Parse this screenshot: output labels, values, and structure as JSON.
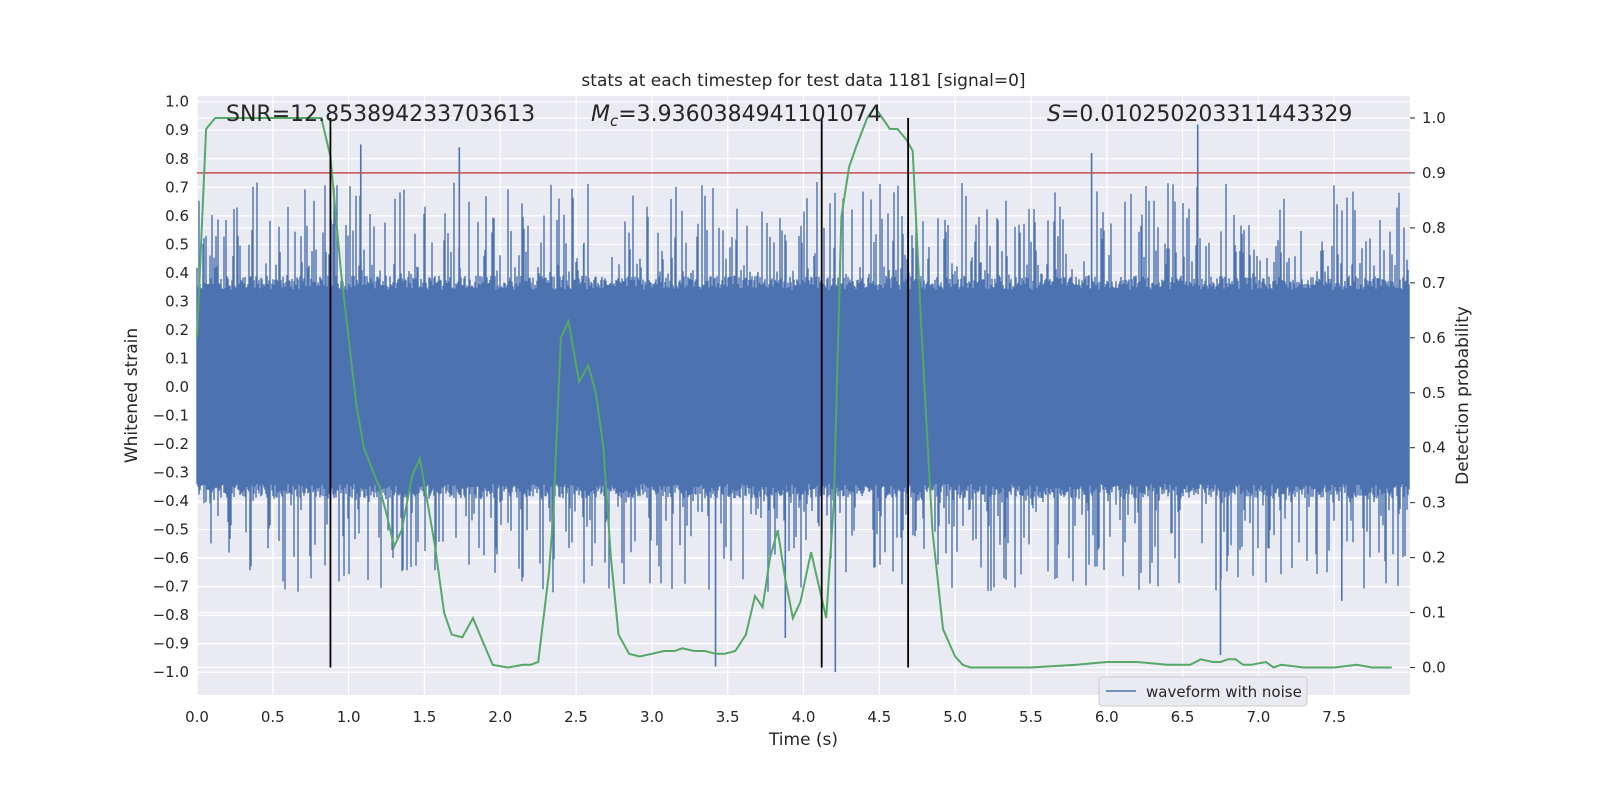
{
  "chart_data": {
    "type": "line",
    "title": "stats at each timestep for test data 1181 [signal=0]",
    "xlabel": "Time (s)",
    "ylabel_left": "Whitened strain",
    "ylabel_right": "Detection probability",
    "xlim": [
      0.0,
      8.0
    ],
    "ylim_left": [
      -1.08,
      1.02
    ],
    "ylim_right": [
      -0.05,
      1.04
    ],
    "grid": true,
    "x_ticks": [
      0.0,
      0.5,
      1.0,
      1.5,
      2.0,
      2.5,
      3.0,
      3.5,
      4.0,
      4.5,
      5.0,
      5.5,
      6.0,
      6.5,
      7.0,
      7.5
    ],
    "x_tick_labels": [
      "0.0",
      "0.5",
      "1.0",
      "1.5",
      "2.0",
      "2.5",
      "3.0",
      "3.5",
      "4.0",
      "4.5",
      "5.0",
      "5.5",
      "6.0",
      "6.5",
      "7.0",
      "7.5"
    ],
    "y_left_ticks": [
      1.0,
      0.9,
      0.8,
      0.7,
      0.6,
      0.5,
      0.4,
      0.3,
      0.2,
      0.1,
      0.0,
      -0.1,
      -0.2,
      -0.3,
      -0.4,
      -0.5,
      -0.6,
      -0.7,
      -0.8,
      -0.9,
      -1.0
    ],
    "y_left_tick_labels": [
      "1.0",
      "0.9",
      "0.8",
      "0.7",
      "0.6",
      "0.5",
      "0.4",
      "0.3",
      "0.2",
      "0.1",
      "0.0",
      "−0.1",
      "−0.2",
      "−0.3",
      "−0.4",
      "−0.5",
      "−0.6",
      "−0.7",
      "−0.8",
      "−0.9",
      "−1.0"
    ],
    "y_right_ticks": [
      1.0,
      0.9,
      0.8,
      0.7,
      0.6,
      0.5,
      0.4,
      0.3,
      0.2,
      0.1,
      0.0
    ],
    "y_right_tick_labels": [
      "1.0",
      "0.9",
      "0.8",
      "0.7",
      "0.6",
      "0.5",
      "0.4",
      "0.3",
      "0.2",
      "0.1",
      "0.0"
    ],
    "series": [
      {
        "name": "waveform with noise",
        "axis": "left",
        "color": "#4c72b0",
        "kind": "noise",
        "core_amplitude": 0.34,
        "peak_amplitude": 0.72,
        "peak_x": [
          0.88,
          1.08,
          1.73,
          2.55,
          3.27,
          3.42,
          3.88,
          4.21,
          5.9,
          6.6,
          6.75,
          7.55
        ],
        "peak_y": [
          -0.4,
          0.85,
          0.84,
          0.5,
          0.3,
          -0.98,
          -0.88,
          -1.0,
          0.82,
          0.92,
          -0.94,
          -0.75
        ]
      },
      {
        "name": "detection probability",
        "axis": "right",
        "color": "#55a868",
        "x": [
          0.0,
          0.06,
          0.12,
          0.2,
          0.3,
          0.5,
          0.7,
          0.82,
          0.88,
          0.95,
          1.0,
          1.05,
          1.1,
          1.2,
          1.25,
          1.3,
          1.35,
          1.42,
          1.47,
          1.52,
          1.57,
          1.63,
          1.68,
          1.75,
          1.82,
          1.88,
          1.95,
          2.05,
          2.15,
          2.2,
          2.25,
          2.32,
          2.35,
          2.4,
          2.45,
          2.52,
          2.58,
          2.63,
          2.68,
          2.73,
          2.78,
          2.85,
          2.92,
          3.0,
          3.08,
          3.15,
          3.2,
          3.28,
          3.35,
          3.42,
          3.48,
          3.55,
          3.62,
          3.68,
          3.73,
          3.78,
          3.83,
          3.88,
          3.93,
          3.98,
          4.05,
          4.1,
          4.15,
          4.2,
          4.25,
          4.3,
          4.35,
          4.42,
          4.47,
          4.52,
          4.57,
          4.62,
          4.68,
          4.72,
          4.78,
          4.85,
          4.92,
          5.0,
          5.05,
          5.1,
          5.2,
          5.5,
          5.8,
          6.0,
          6.2,
          6.4,
          6.55,
          6.62,
          6.7,
          6.75,
          6.8,
          6.85,
          6.9,
          6.95,
          7.05,
          7.1,
          7.15,
          7.3,
          7.5,
          7.65,
          7.75,
          7.88
        ],
        "y": [
          0.6,
          0.98,
          1.0,
          1.0,
          1.0,
          1.0,
          1.0,
          1.0,
          0.93,
          0.72,
          0.6,
          0.48,
          0.4,
          0.33,
          0.28,
          0.22,
          0.25,
          0.35,
          0.38,
          0.3,
          0.22,
          0.1,
          0.06,
          0.055,
          0.09,
          0.05,
          0.005,
          0.0,
          0.005,
          0.005,
          0.01,
          0.17,
          0.28,
          0.6,
          0.63,
          0.52,
          0.55,
          0.5,
          0.4,
          0.2,
          0.06,
          0.025,
          0.02,
          0.025,
          0.03,
          0.03,
          0.035,
          0.03,
          0.03,
          0.025,
          0.025,
          0.03,
          0.06,
          0.13,
          0.11,
          0.2,
          0.25,
          0.16,
          0.09,
          0.12,
          0.21,
          0.15,
          0.09,
          0.3,
          0.82,
          0.91,
          0.95,
          1.0,
          1.02,
          1.0,
          0.98,
          0.98,
          0.96,
          0.94,
          0.6,
          0.25,
          0.07,
          0.02,
          0.005,
          0.0,
          0.0,
          0.0,
          0.005,
          0.01,
          0.01,
          0.005,
          0.005,
          0.015,
          0.01,
          0.01,
          0.015,
          0.015,
          0.005,
          0.005,
          0.01,
          0.0,
          0.005,
          0.0,
          0.0,
          0.005,
          0.0,
          0.0
        ]
      }
    ],
    "threshold": {
      "value": 0.9,
      "axis": "right",
      "color": "#c44e52"
    },
    "vlines": {
      "x": [
        0.88,
        4.12,
        4.69
      ],
      "color": "#000000"
    },
    "annotations": {
      "snr": "SNR=12.853894233703613",
      "mc_symbol": "M",
      "mc_sub": "c",
      "mc_value": "=3.9360384941101074",
      "s_symbol": "S",
      "s_value": "=0.010250203311443329"
    },
    "legend": {
      "label": "waveform with noise",
      "placement": "bottom-right"
    }
  }
}
